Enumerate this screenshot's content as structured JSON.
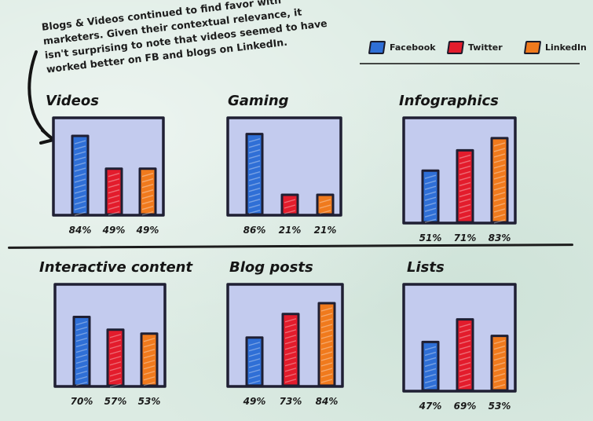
{
  "note": {
    "lines": [
      "Blogs & Videos continued to find favor with",
      "marketers. Given their contextual relevance, it",
      "isn't surprising to note that videos seemed to have",
      "worked better on FB and blogs on LinkedIn."
    ]
  },
  "legend": {
    "items": [
      {
        "label": "Facebook",
        "color": "#2f6fd6"
      },
      {
        "label": "Twitter",
        "color": "#e31c2c"
      },
      {
        "label": "LinkedIn",
        "color": "#f07a1d"
      }
    ]
  },
  "colors": {
    "panel": "#c3cbee",
    "frame": "#1f1f33",
    "facebook": "#2f6fd6",
    "twitter": "#e31c2c",
    "linkedin": "#f07a1d"
  },
  "chart_data": [
    {
      "type": "bar",
      "title": "Videos",
      "categories": [
        "Facebook",
        "Twitter",
        "LinkedIn"
      ],
      "values": [
        84,
        49,
        49
      ],
      "labels": [
        "84%",
        "49%",
        "49%"
      ],
      "ylim": [
        0,
        100
      ]
    },
    {
      "type": "bar",
      "title": "Gaming",
      "categories": [
        "Facebook",
        "Twitter",
        "LinkedIn"
      ],
      "values": [
        86,
        21,
        21
      ],
      "labels": [
        "86%",
        "21%",
        "21%"
      ],
      "ylim": [
        0,
        100
      ]
    },
    {
      "type": "bar",
      "title": "Infographics",
      "categories": [
        "Facebook",
        "Twitter",
        "LinkedIn"
      ],
      "values": [
        51,
        71,
        83
      ],
      "labels": [
        "51%",
        "71%",
        "83%"
      ],
      "ylim": [
        0,
        100
      ]
    },
    {
      "type": "bar",
      "title": "Interactive content",
      "categories": [
        "Facebook",
        "Twitter",
        "LinkedIn"
      ],
      "values": [
        70,
        57,
        53
      ],
      "labels": [
        "70%",
        "57%",
        "53%"
      ],
      "ylim": [
        0,
        100
      ]
    },
    {
      "type": "bar",
      "title": "Blog posts",
      "categories": [
        "Facebook",
        "Twitter",
        "LinkedIn"
      ],
      "values": [
        49,
        73,
        84
      ],
      "labels": [
        "49%",
        "73%",
        "84%"
      ],
      "ylim": [
        0,
        100
      ]
    },
    {
      "type": "bar",
      "title": "Lists",
      "categories": [
        "Facebook",
        "Twitter",
        "LinkedIn"
      ],
      "values": [
        47,
        69,
        53
      ],
      "labels": [
        "47%",
        "69%",
        "53%"
      ],
      "ylim": [
        0,
        100
      ]
    }
  ]
}
